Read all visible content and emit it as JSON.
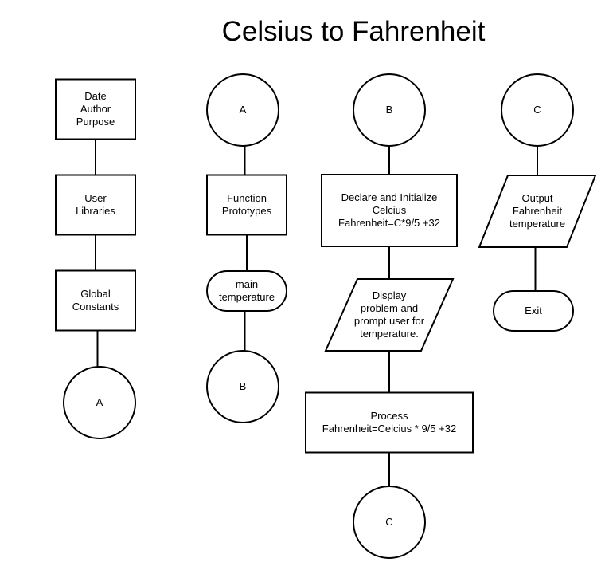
{
  "title": "Celsius to Fahrenheit",
  "colors": {
    "stroke": "#000000",
    "fill": "#ffffff",
    "text": "#000000"
  },
  "nodes": [
    {
      "id": "c1_header",
      "shape": "rect",
      "lines": [
        "Date",
        "Author",
        "Purpose"
      ]
    },
    {
      "id": "c1_libs",
      "shape": "rect",
      "lines": [
        "User",
        "Libraries"
      ]
    },
    {
      "id": "c1_consts",
      "shape": "rect",
      "lines": [
        "Global",
        "Constants"
      ]
    },
    {
      "id": "c1_conn_a",
      "shape": "circle",
      "lines": [
        "A"
      ]
    },
    {
      "id": "c2_conn_a",
      "shape": "circle",
      "lines": [
        "A"
      ]
    },
    {
      "id": "c2_protos",
      "shape": "rect",
      "lines": [
        "Function",
        "Prototypes"
      ]
    },
    {
      "id": "c2_main",
      "shape": "terminator",
      "lines": [
        "main",
        "temperature"
      ]
    },
    {
      "id": "c2_conn_b",
      "shape": "circle",
      "lines": [
        "B"
      ]
    },
    {
      "id": "c3_conn_b",
      "shape": "circle",
      "lines": [
        "B"
      ]
    },
    {
      "id": "c3_declare",
      "shape": "rect",
      "lines": [
        "Declare and Initialize",
        "Celcius",
        "Fahrenheit=C*9/5 +32"
      ]
    },
    {
      "id": "c3_display",
      "shape": "parallelogram",
      "lines": [
        "Display",
        "problem and",
        "prompt user for",
        "temperature."
      ]
    },
    {
      "id": "c3_process",
      "shape": "rect",
      "lines": [
        "Process",
        "Fahrenheit=Celcius * 9/5 +32"
      ]
    },
    {
      "id": "c3_conn_c",
      "shape": "circle",
      "lines": [
        "C"
      ]
    },
    {
      "id": "c4_conn_c",
      "shape": "circle",
      "lines": [
        "C"
      ]
    },
    {
      "id": "c4_output",
      "shape": "parallelogram",
      "lines": [
        "Output",
        "Fahrenheit",
        "temperature"
      ]
    },
    {
      "id": "c4_exit",
      "shape": "terminator",
      "lines": [
        "Exit"
      ]
    }
  ],
  "edges": [
    {
      "from": "c1_header",
      "to": "c1_libs"
    },
    {
      "from": "c1_libs",
      "to": "c1_consts"
    },
    {
      "from": "c1_consts",
      "to": "c1_conn_a"
    },
    {
      "from": "c2_conn_a",
      "to": "c2_protos"
    },
    {
      "from": "c2_protos",
      "to": "c2_main"
    },
    {
      "from": "c2_main",
      "to": "c2_conn_b"
    },
    {
      "from": "c3_conn_b",
      "to": "c3_declare"
    },
    {
      "from": "c3_declare",
      "to": "c3_display"
    },
    {
      "from": "c3_display",
      "to": "c3_process"
    },
    {
      "from": "c3_process",
      "to": "c3_conn_c"
    },
    {
      "from": "c4_conn_c",
      "to": "c4_output"
    },
    {
      "from": "c4_output",
      "to": "c4_exit"
    }
  ]
}
